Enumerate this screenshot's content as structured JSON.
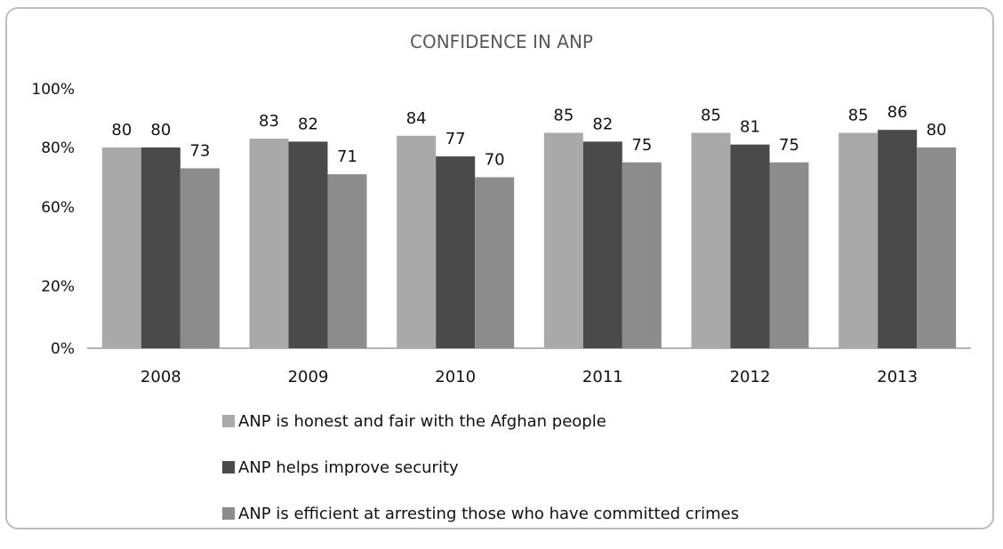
{
  "chart_data": {
    "type": "bar",
    "title": "CONFIDENCE IN ANP",
    "categories": [
      "2008",
      "2009",
      "2010",
      "2011",
      "2012",
      "2013"
    ],
    "y_ticks": [
      "100%",
      "80%",
      "60%",
      "20%",
      "0%"
    ],
    "series": [
      {
        "name": "ANP is honest and fair with the Afghan people",
        "values": [
          80,
          83,
          84,
          85,
          85,
          85
        ],
        "color": "#a9a9a9"
      },
      {
        "name": "ANP helps improve security",
        "values": [
          80,
          82,
          77,
          82,
          81,
          86
        ],
        "color": "#4a4a4a"
      },
      {
        "name": "ANP is efficient at arresting those who have committed crimes",
        "values": [
          73,
          71,
          70,
          75,
          75,
          80
        ],
        "color": "#8c8c8c"
      }
    ],
    "data_labels": [
      [
        "80",
        "83",
        "84",
        "85",
        "85",
        "85"
      ],
      [
        "80",
        "82",
        "77",
        "82",
        "81",
        "86"
      ],
      [
        "73",
        "71",
        "70",
        "75",
        "75",
        "80"
      ]
    ],
    "legend_placement": "bottom",
    "grid": false
  }
}
